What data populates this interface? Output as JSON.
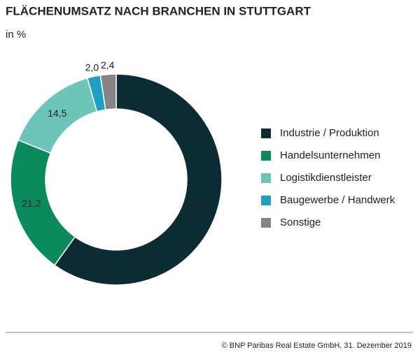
{
  "chart_data": {
    "type": "donut",
    "title": "FLÄCHENUMSATZ NACH BRANCHEN IN STUTTGART",
    "subtitle": "in %",
    "categories": [
      "Industrie / Produktion",
      "Handelsunternehmen",
      "Logistikdienstleister",
      "Baugewerbe / Handwerk",
      "Sonstige"
    ],
    "values": [
      59.9,
      21.2,
      14.5,
      2.0,
      2.4
    ],
    "value_labels": [
      "59,9",
      "21,2",
      "14,5",
      "2,0",
      "2,4"
    ],
    "colors": [
      "#0d2b33",
      "#0b8a5e",
      "#6cc5b9",
      "#1f9fc1",
      "#858585"
    ],
    "legend": "right",
    "source": "© BNP Paribas Real Estate GmbH, 31. Dezember 2019"
  }
}
